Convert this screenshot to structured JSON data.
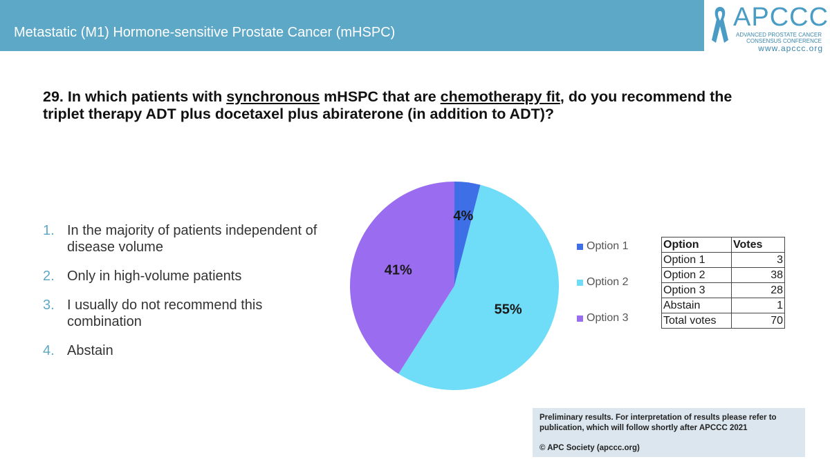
{
  "header": {
    "title": "Metastatic (M1) Hormone-sensitive Prostate Cancer (mHSPC)"
  },
  "logo": {
    "word": "APCCC",
    "line1": "ADVANCED PROSTATE CANCER",
    "line2": "CONSENSUS CONFERENCE",
    "url": "www.apccc.org",
    "icon": "awareness-ribbon-icon"
  },
  "question": {
    "part1": "29. In which patients with ",
    "u1": "synchronous",
    "part2": " mHSPC that are ",
    "u2": "chemotherapy fit",
    "part3": ", do you recommend the triplet therapy ADT plus docetaxel plus abiraterone (in addition to ADT)?"
  },
  "options": [
    {
      "num": "1.",
      "text": "In the majority of patients independent of disease volume"
    },
    {
      "num": "2.",
      "text": "Only in high-volume patients"
    },
    {
      "num": "3.",
      "text": "I usually do not recommend this combination"
    },
    {
      "num": "4.",
      "text": "Abstain"
    }
  ],
  "chart_data": {
    "type": "pie",
    "categories": [
      "Option 1",
      "Option 2",
      "Option 3"
    ],
    "values": [
      4,
      55,
      41
    ],
    "data_labels": [
      "4%",
      "55%",
      "41%"
    ],
    "colors": [
      "#3f6fe6",
      "#6fdcf8",
      "#9a6cf0"
    ],
    "legend_position": "right"
  },
  "votes_table": {
    "headers": [
      "Option",
      "Votes"
    ],
    "rows": [
      [
        "Option 1",
        "3"
      ],
      [
        "Option 2",
        "38"
      ],
      [
        "Option 3",
        "28"
      ],
      [
        "Abstain",
        "1"
      ],
      [
        "Total votes",
        "70"
      ]
    ]
  },
  "footer": {
    "note": "Preliminary results. For interpretation of results please refer to publication, which will follow shortly after APCCC 2021",
    "copyright": "© APC Society (apccc.org)"
  }
}
